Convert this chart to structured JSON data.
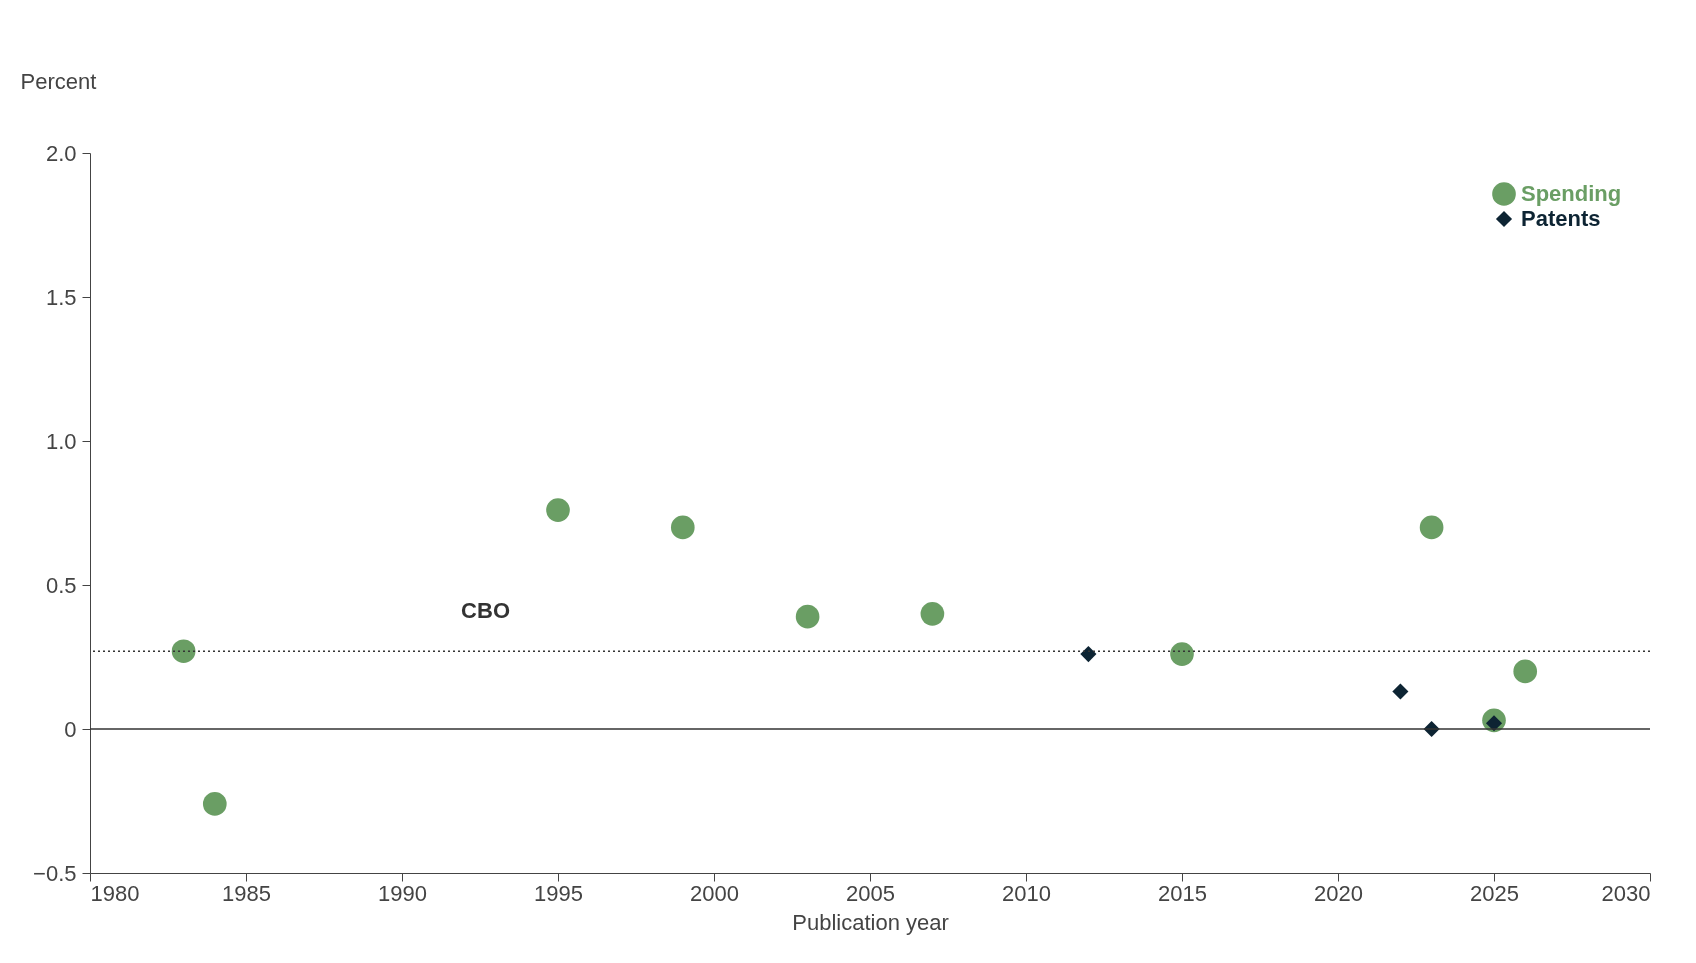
{
  "chart_data": {
    "type": "scatter",
    "ylabel": "Percent",
    "xlabel": "Publication year",
    "xlim": [
      1980,
      2030
    ],
    "xticks": [
      1980,
      1985,
      1990,
      1995,
      2000,
      2005,
      2010,
      2015,
      2020,
      2025,
      2030
    ],
    "ylim": [
      -0.5,
      2.0
    ],
    "yticks": [
      {
        "value": -0.5,
        "label": "−0.5"
      },
      0,
      0.5,
      {
        "value": 1.0,
        "label": "1.0"
      },
      1.5,
      {
        "value": 2.0,
        "label": "2.0"
      }
    ],
    "grid": false,
    "legend": "top right",
    "ref_lines": [
      {
        "axis": "y",
        "value": 0.27,
        "label": "CBO",
        "line_style": "dotted",
        "color": "#333333"
      },
      {
        "axis": "y",
        "value": 0,
        "label": null,
        "line_style": "solid",
        "color": "#333333"
      }
    ],
    "series": [
      {
        "name": "Spending",
        "color": "#6a9e64",
        "marker": "circle",
        "x": [
          1983,
          1984,
          1995,
          1999,
          2003,
          2007,
          2015,
          2023,
          2025,
          2026
        ],
        "values": [
          0.27,
          -0.26,
          0.76,
          0.7,
          0.39,
          0.4,
          0.26,
          0.7,
          0.03,
          0.2
        ]
      },
      {
        "name": "Patents",
        "color": "#0d2433",
        "marker": "diamond",
        "x": [
          2012,
          2022,
          2023,
          2025
        ],
        "values": [
          0.26,
          0.13,
          0.0,
          0.02
        ]
      }
    ]
  }
}
